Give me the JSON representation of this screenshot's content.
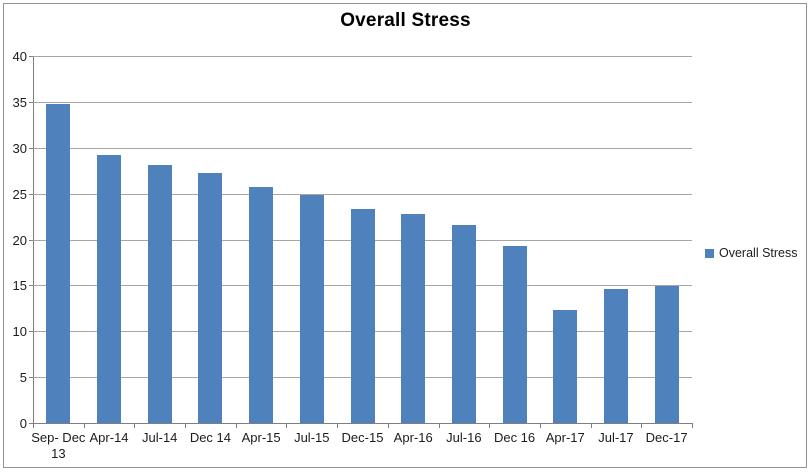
{
  "title": "Overall Stress",
  "legend": {
    "label": "Overall Stress",
    "swatch_color": "#4f81bd"
  },
  "colors": {
    "bar": "#4f81bd",
    "gridline": "#a6a6a6",
    "axis": "#7f7f7f",
    "border": "#919191",
    "text": "#1c1c1c"
  },
  "chart_data": {
    "type": "bar",
    "title": "Overall Stress",
    "series_name": "Overall Stress",
    "categories": [
      "Sep- Dec 13",
      "Apr-14",
      "Jul-14",
      "Dec 14",
      "Apr-15",
      "Jul-15",
      "Dec-15",
      "Apr-16",
      "Jul-16",
      "Dec 16",
      "Apr-17",
      "Jul-17",
      "Dec-17"
    ],
    "values": [
      34.8,
      29.2,
      28.1,
      27.3,
      25.7,
      24.9,
      23.3,
      22.8,
      21.6,
      19.3,
      12.3,
      14.6,
      14.9
    ],
    "xlabel": "",
    "ylabel": "",
    "ylim": [
      0,
      40
    ],
    "yticks": [
      0,
      5,
      10,
      15,
      20,
      25,
      30,
      35,
      40
    ],
    "grid": true,
    "legend_position": "right",
    "bar_color": "#4f81bd"
  }
}
